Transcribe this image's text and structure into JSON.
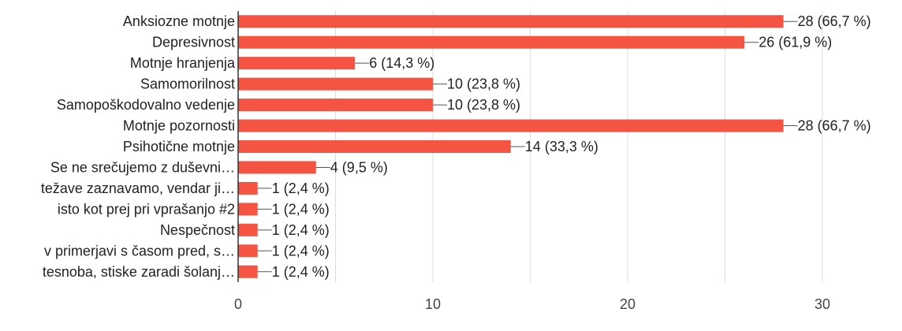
{
  "chart_data": {
    "type": "bar",
    "orientation": "horizontal",
    "categories": [
      "Anksiozne motnje",
      "Depresivnost",
      "Motnje hranjenja",
      "Samomorilnost",
      "Samopoškodovalno vedenje",
      "Motnje pozornosti",
      "Psihotične motnje",
      "Se ne srečujemo z duševni…",
      "težave zaznavamo, vendar ji…",
      "isto kot prej pri vprašanjo #2",
      "Nespečnost",
      "v primerjavi s časom pred, s…",
      "tesnoba, stiske zaradi šolanj…"
    ],
    "values": [
      28,
      26,
      6,
      10,
      10,
      28,
      14,
      4,
      1,
      1,
      1,
      1,
      1
    ],
    "value_labels": [
      "28 (66,7 %)",
      "26 (61,9 %)",
      "6 (14,3 %)",
      "10 (23,8 %)",
      "10 (23,8 %)",
      "28 (66,7 %)",
      "14 (33,3 %)",
      "4 (9,5 %)",
      "1 (2,4 %)",
      "1 (2,4 %)",
      "1 (2,4 %)",
      "1 (2,4 %)",
      "1 (2,4 %)"
    ],
    "xlim": [
      0,
      30
    ],
    "xticks": [
      0,
      10,
      20,
      30
    ],
    "xtick_labels": [
      "0",
      "10",
      "20",
      "30"
    ],
    "grid": true,
    "bar_color": "#f55442",
    "grid_color": "#dddddd",
    "axis_color": "#333333"
  }
}
